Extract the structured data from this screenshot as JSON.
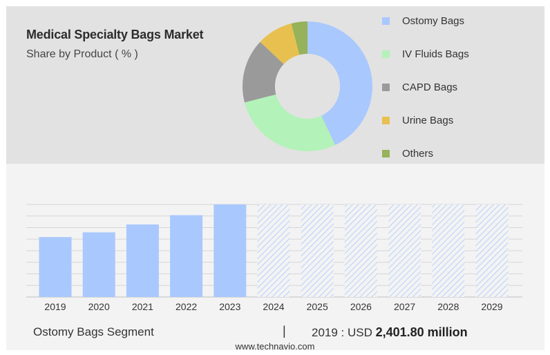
{
  "title": "Medical Specialty Bags Market",
  "subtitle": "Share by Product ( % )",
  "colors": {
    "ostomy": "#a9c8fd",
    "iv_fluids": "#b3f2b8",
    "capd": "#9a9a9a",
    "urine": "#e8c04f",
    "others": "#96b25a",
    "forecast_hatch": "#a9c8fd"
  },
  "chart_data": [
    {
      "type": "pie",
      "donut": true,
      "legend_position": "right",
      "categories": [
        "Ostomy Bags",
        "IV Fluids Bags",
        "CAPD Bags",
        "Urine Bags",
        "Others"
      ],
      "values": [
        43,
        28,
        16,
        9,
        4
      ]
    },
    {
      "type": "bar",
      "series_name": "Ostomy Bags Segment",
      "categories": [
        "2019",
        "2020",
        "2021",
        "2022",
        "2023",
        "2024",
        "2025",
        "2026",
        "2027",
        "2028",
        "2029"
      ],
      "values": [
        2401.8,
        2591.0,
        2907.0,
        3279.0,
        3710.0,
        3710.0,
        3710.0,
        3710.0,
        3710.0,
        3710.0,
        3710.0
      ],
      "forecast_start_index": 5,
      "ylim": [
        0,
        3710
      ],
      "grid": true
    }
  ],
  "footer": {
    "segment": "Ostomy Bags Segment",
    "divider": "|",
    "year_prefix": "2019 : USD ",
    "amount": "2,401.80 million"
  },
  "source": "www.technavio.com"
}
